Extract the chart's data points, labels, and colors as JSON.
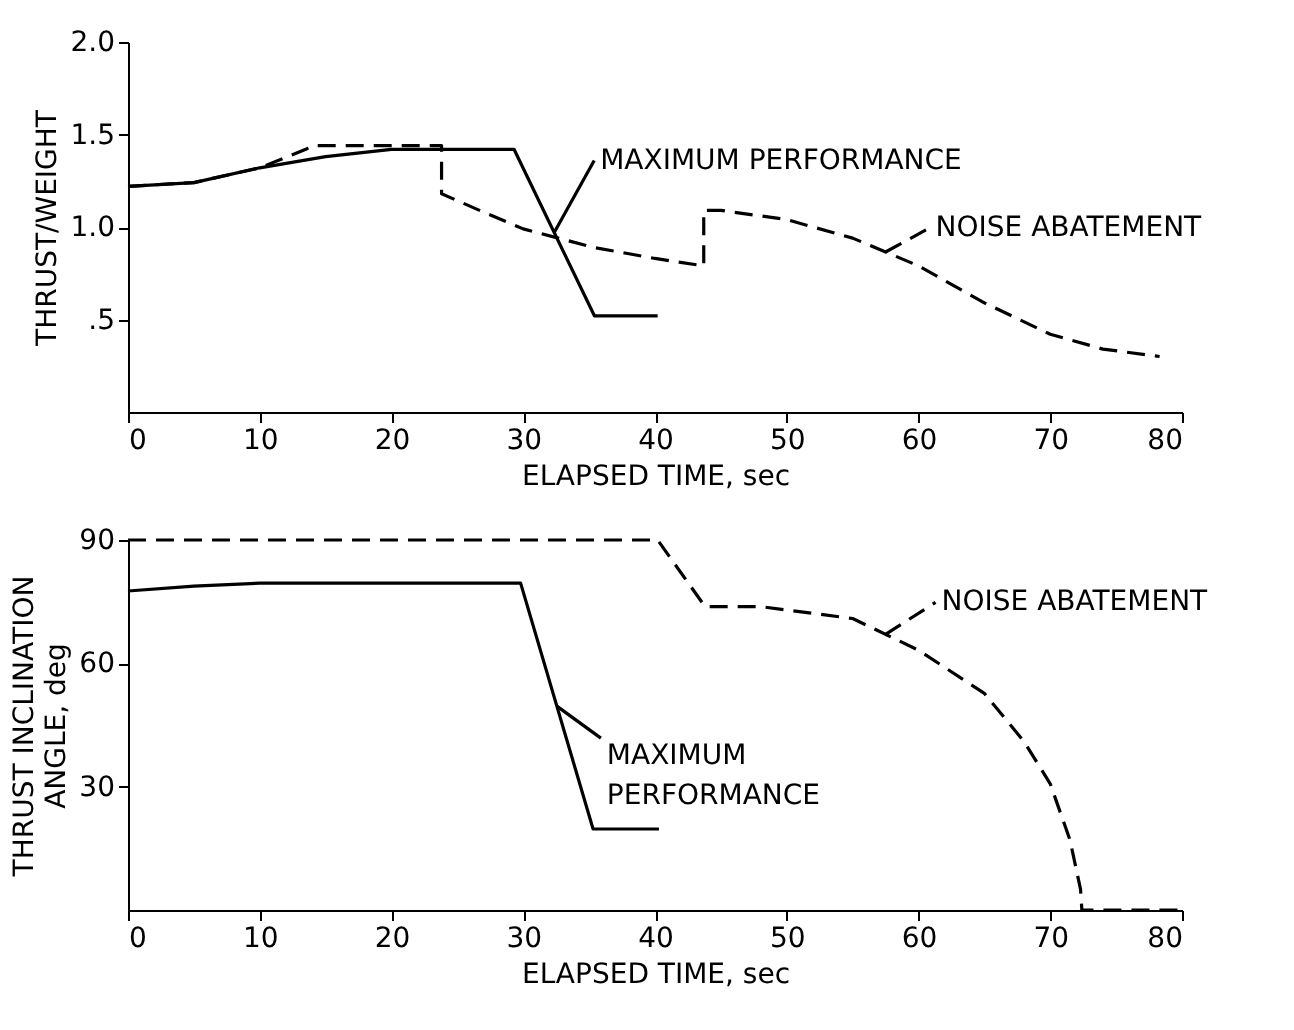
{
  "chart_data": [
    {
      "type": "line",
      "ylabel": "THRUST/WEIGHT",
      "xlabel": "ELAPSED TIME, sec",
      "xlim": [
        0,
        80
      ],
      "xticks": [
        0,
        10,
        20,
        30,
        40,
        50,
        60,
        70,
        80
      ],
      "ylim": [
        0,
        2
      ],
      "yticks": [
        {
          "value": 0.5,
          "label": ".5"
        },
        {
          "value": 1,
          "label": "1.0"
        },
        {
          "value": 1.5,
          "label": "1.5"
        },
        {
          "value": 2,
          "label": "2.0"
        }
      ],
      "grid": false,
      "marker": "none",
      "series": [
        {
          "name": "MAXIMUM PERFORMANCE",
          "color": "#000000",
          "line_style": "solid",
          "x": [
            0,
            5,
            10,
            15,
            20,
            29.3,
            35.4,
            40.2
          ],
          "values": [
            1.22,
            1.24,
            1.32,
            1.38,
            1.42,
            1.42,
            0.52,
            0.52
          ]
        },
        {
          "name": "NOISE ABATEMENT",
          "color": "#000000",
          "line_style": "dashed",
          "x": [
            0,
            5,
            10,
            13.5,
            14,
            23.8,
            23.8,
            27,
            30,
            35.3,
            40,
            43.7,
            43.7,
            45,
            50,
            55,
            60,
            65,
            70,
            74,
            78.3
          ],
          "values": [
            1.22,
            1.24,
            1.32,
            1.42,
            1.44,
            1.44,
            1.18,
            1.08,
            0.99,
            0.89,
            0.83,
            0.79,
            1.09,
            1.09,
            1.04,
            0.94,
            0.79,
            0.59,
            0.42,
            0.34,
            0.3
          ]
        }
      ]
    },
    {
      "type": "line",
      "ylabel": "THRUST INCLINATION\nANGLE, deg",
      "xlabel": "ELAPSED TIME, sec",
      "xlim": [
        0,
        80
      ],
      "xticks": [
        0,
        10,
        20,
        30,
        40,
        50,
        60,
        70,
        80
      ],
      "ylim": [
        0,
        90
      ],
      "yticks": [
        30,
        60,
        90
      ],
      "grid": false,
      "marker": "none",
      "series": [
        {
          "name": "MAXIMUM\nPERFORMANCE",
          "color": "#000000",
          "line_style": "solid",
          "x": [
            0,
            5,
            10,
            20,
            29.8,
            35.3,
            40.3
          ],
          "values": [
            77.6,
            78.8,
            79.5,
            79.5,
            79.5,
            19.7,
            19.7
          ]
        },
        {
          "name": "NOISE ABATEMENT",
          "color": "#000000",
          "line_style": "dashed",
          "x": [
            0,
            40.2,
            43.8,
            48,
            55,
            60,
            65,
            68,
            70,
            71.5,
            72.3,
            72.4,
            80
          ],
          "values": [
            90,
            90,
            73.8,
            73.8,
            70.9,
            63.2,
            52.7,
            41,
            30.7,
            17,
            5,
            0,
            0
          ]
        }
      ]
    }
  ]
}
